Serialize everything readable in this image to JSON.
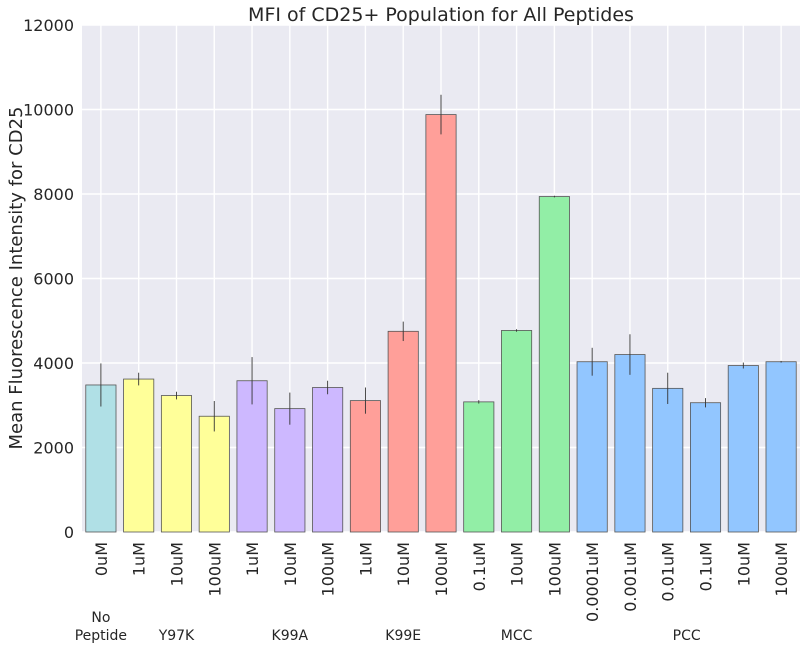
{
  "chart_data": {
    "type": "bar",
    "title": "MFI of CD25+ Population for All Peptides",
    "xlabel": "",
    "ylabel": "Mean Fluorescence Intensity for CD25",
    "ylim": [
      0,
      12000
    ],
    "yticks": [
      0,
      2000,
      4000,
      6000,
      8000,
      10000,
      12000
    ],
    "grid": true,
    "colors": {
      "background": "#EAEAF2",
      "grid": "#FFFFFF",
      "No Peptide": "#B0E0E6",
      "Y97K": "#FFFF99",
      "K99A": "#CDB8FF",
      "K99E": "#FF9F99",
      "MCC": "#92EEA6",
      "PCC": "#92C6FF",
      "bar_edge": "#555555",
      "error_bar": "#333333"
    },
    "groups": [
      {
        "label": [
          "No",
          "Peptide"
        ],
        "color_key": "No Peptide",
        "start": 0,
        "count": 1
      },
      {
        "label": [
          "Y97K"
        ],
        "color_key": "Y97K",
        "start": 1,
        "count": 3
      },
      {
        "label": [
          "K99A"
        ],
        "color_key": "K99A",
        "start": 4,
        "count": 3
      },
      {
        "label": [
          "K99E"
        ],
        "color_key": "K99E",
        "start": 7,
        "count": 3
      },
      {
        "label": [
          "MCC"
        ],
        "color_key": "MCC",
        "start": 10,
        "count": 3
      },
      {
        "label": [
          "PCC"
        ],
        "color_key": "PCC",
        "start": 13,
        "count": 6
      }
    ],
    "categories": [
      "0uM",
      "1uM",
      "10uM",
      "100uM",
      "1uM",
      "10uM",
      "100uM",
      "1uM",
      "10uM",
      "100uM",
      "0.1uM",
      "10uM",
      "100uM",
      "0.0001uM",
      "0.001uM",
      "0.01uM",
      "0.1uM",
      "10uM",
      "100uM"
    ],
    "values": [
      3480,
      3620,
      3230,
      2740,
      3580,
      2920,
      3420,
      3110,
      4750,
      9880,
      3080,
      4770,
      7940,
      4030,
      4200,
      3400,
      3060,
      3940,
      4030
    ],
    "errors": [
      510,
      150,
      90,
      360,
      560,
      380,
      160,
      310,
      230,
      470,
      40,
      30,
      20,
      330,
      480,
      370,
      110,
      70,
      20
    ]
  }
}
